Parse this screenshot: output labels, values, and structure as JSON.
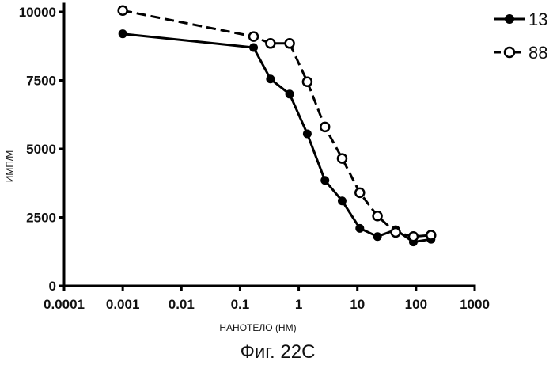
{
  "chart_data": {
    "type": "line",
    "xlabel": "НАНОТЕЛО (НМ)",
    "ylabel": "ИМП/М",
    "caption": "Фиг. 22С",
    "x_scale": "log",
    "xlim": [
      0.0001,
      1000
    ],
    "ylim": [
      0,
      10000
    ],
    "x_tick_labels": [
      "0.0001",
      "0.001",
      "0.01",
      "0.1",
      "1",
      "10",
      "100",
      "1000"
    ],
    "y_tick_labels": [
      "0",
      "2500",
      "5000",
      "7500",
      "10000"
    ],
    "grid": false,
    "legend_position": "top-right",
    "series": [
      {
        "name": "13",
        "marker": "filled-circle",
        "line": "solid",
        "x": [
          0.001,
          0.17,
          0.33,
          0.7,
          1.4,
          2.8,
          5.5,
          11,
          22,
          45,
          90,
          180
        ],
        "y": [
          9200,
          8700,
          7550,
          7000,
          5550,
          3850,
          3100,
          2100,
          1800,
          2050,
          1600,
          1700
        ]
      },
      {
        "name": "88",
        "marker": "open-circle",
        "line": "dashed",
        "x": [
          0.001,
          0.17,
          0.33,
          0.7,
          1.4,
          2.8,
          5.5,
          11,
          22,
          45,
          90,
          180
        ],
        "y": [
          10050,
          9100,
          8850,
          8850,
          7450,
          5800,
          4650,
          3400,
          2550,
          1950,
          1800,
          1850
        ]
      }
    ]
  }
}
